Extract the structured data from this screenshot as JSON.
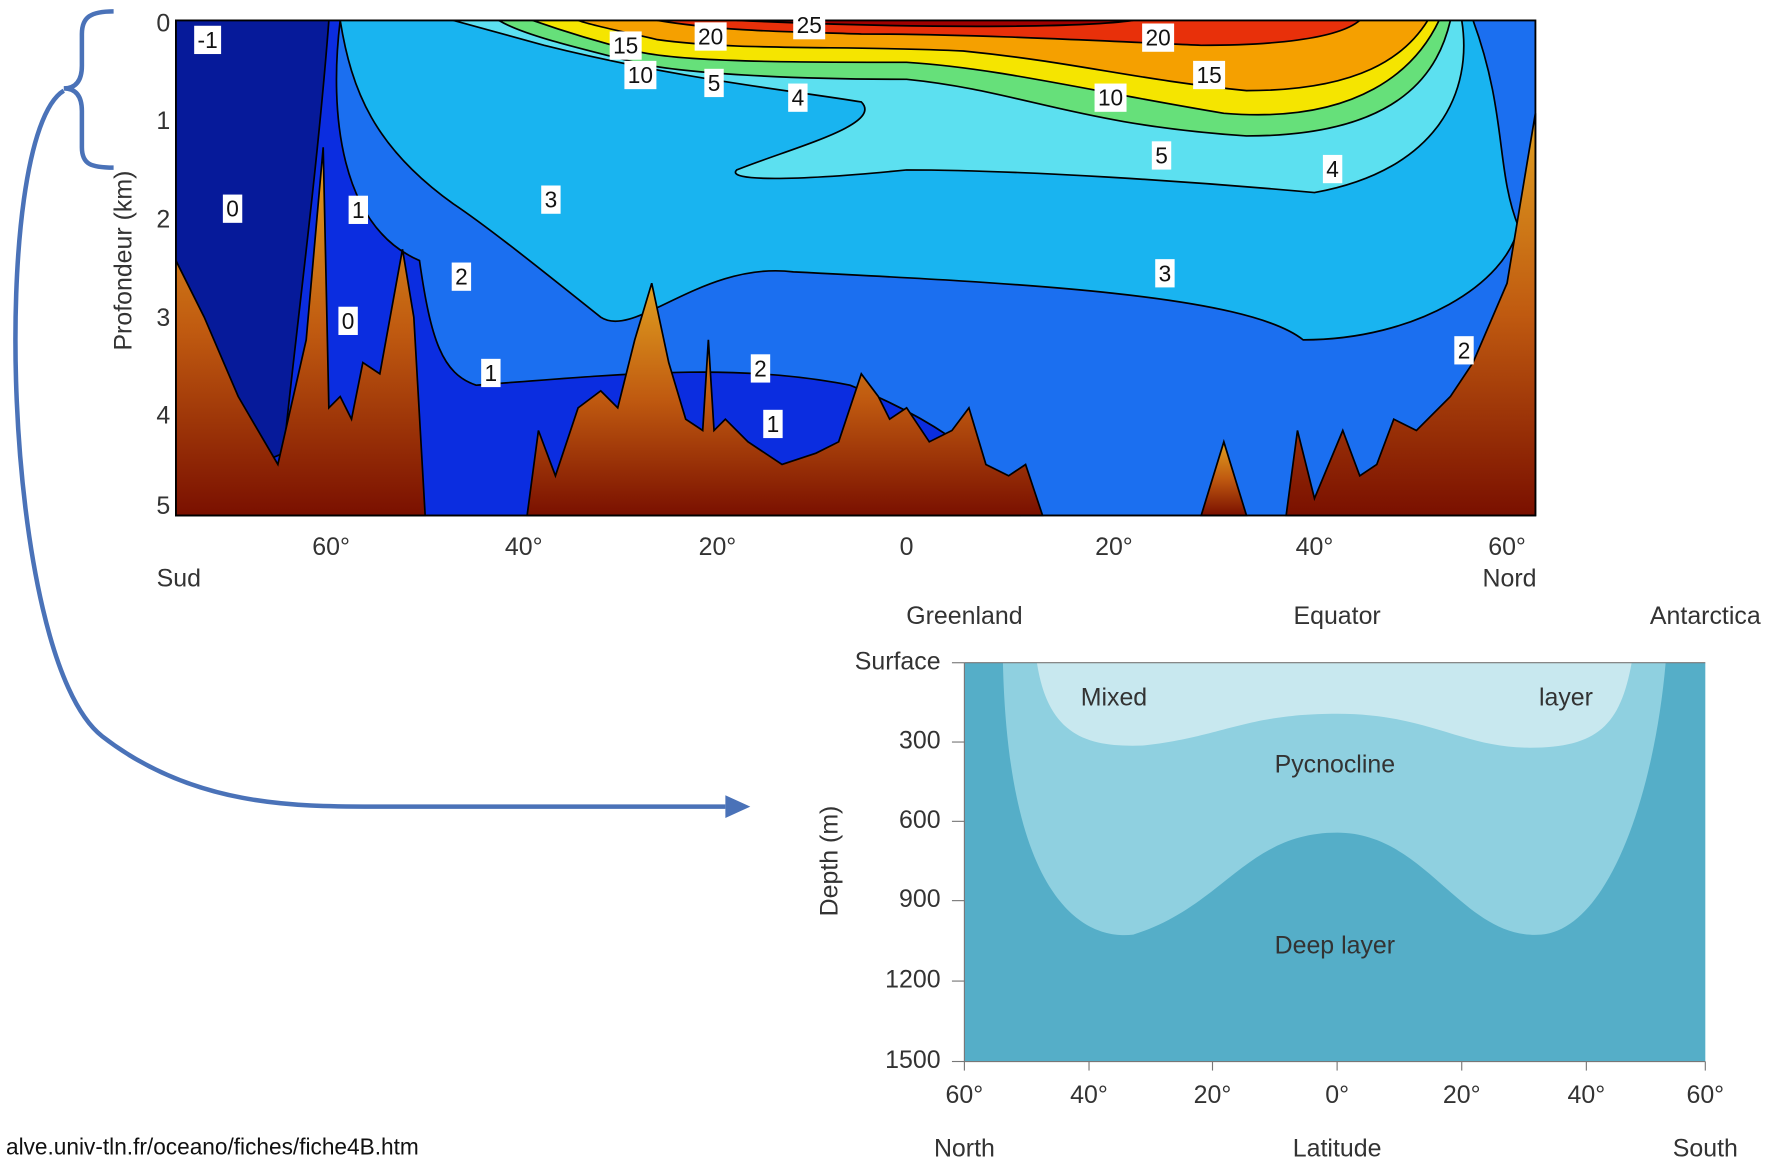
{
  "top_figure": {
    "y_axis_label": "Profondeur (km)",
    "y_ticks": [
      "0",
      "1",
      "2",
      "3",
      "4",
      "5"
    ],
    "x_ticks": [
      "60°",
      "40°",
      "20°",
      "0",
      "20°",
      "40°",
      "60°"
    ],
    "x_end_left": "Sud",
    "x_end_right": "Nord",
    "contour_labels": [
      "-1",
      "0",
      "1",
      "0",
      "3",
      "2",
      "1",
      "2",
      "1",
      "15",
      "10",
      "20",
      "25",
      "5",
      "4",
      "20",
      "15",
      "10",
      "5",
      "4",
      "3",
      "2"
    ]
  },
  "bottom_figure": {
    "top_labels": [
      "Greenland",
      "Equator",
      "Antarctica"
    ],
    "y_axis_label": "Depth (m)",
    "y_ticks": [
      "Surface",
      "300",
      "600",
      "900",
      "1200",
      "1500"
    ],
    "x_ticks": [
      "60°",
      "40°",
      "20°",
      "0°",
      "20°",
      "40°",
      "60°"
    ],
    "bottom_labels": [
      "North",
      "Latitude",
      "South"
    ],
    "regions": [
      "Mixed",
      "layer",
      "Pycnocline",
      "Deep layer"
    ]
  },
  "source": "alve.univ-tln.fr/oceano/fiches/fiche4B.htm"
}
